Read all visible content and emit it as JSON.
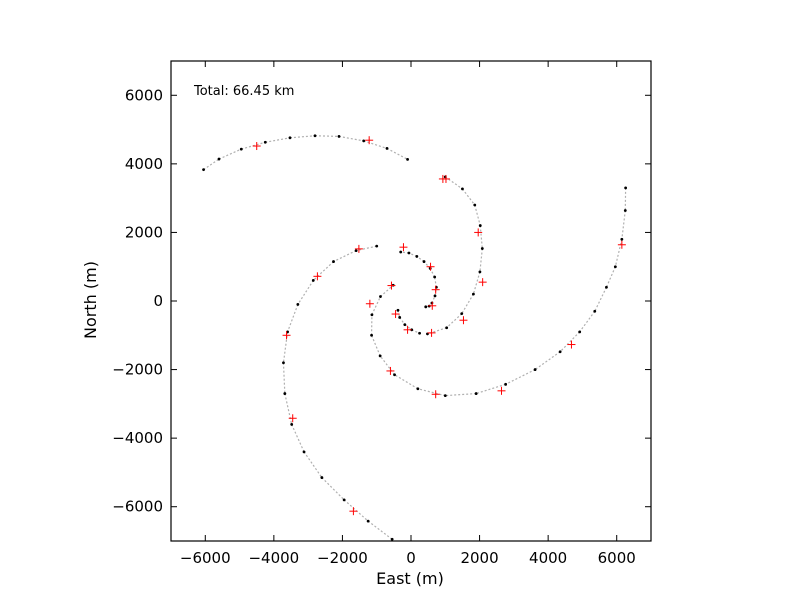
{
  "chart_data": {
    "type": "scatter",
    "xlabel": "East (m)",
    "ylabel": "North (m)",
    "xlim": [
      -7000,
      7000
    ],
    "ylim": [
      -7000,
      7000
    ],
    "xticks": [
      -6000,
      -4000,
      -2000,
      0,
      2000,
      4000,
      6000
    ],
    "yticks": [
      -6000,
      -4000,
      -2000,
      0,
      2000,
      4000,
      6000
    ],
    "annotations": [
      {
        "text": "Total: 66.45 km"
      }
    ],
    "grid": false,
    "colors": {
      "station_marker": "#000000",
      "track_line": "#b0b0b0",
      "cross_marker": "#ff0000"
    },
    "series": [
      {
        "marker": "dot",
        "color": "#000000",
        "points": [
          [
            430,
            -170
          ],
          [
            530,
            -150
          ],
          [
            610,
            -60
          ],
          [
            700,
            150
          ],
          [
            740,
            400
          ],
          [
            690,
            700
          ],
          [
            560,
            950
          ],
          [
            380,
            1150
          ],
          [
            170,
            1300
          ],
          [
            -60,
            1400
          ],
          [
            -300,
            1430
          ],
          [
            1000,
            3620
          ],
          [
            1500,
            3270
          ],
          [
            1860,
            2800
          ],
          [
            2020,
            2200
          ],
          [
            2080,
            1530
          ],
          [
            2010,
            850
          ],
          [
            1820,
            200
          ],
          [
            1480,
            -370
          ],
          [
            1040,
            -780
          ],
          [
            480,
            -960
          ],
          [
            6260,
            3300
          ],
          [
            6250,
            2640
          ],
          [
            6150,
            1800
          ],
          [
            5960,
            1000
          ],
          [
            5700,
            400
          ],
          [
            5360,
            -300
          ],
          [
            4920,
            -900
          ],
          [
            4350,
            -1480
          ],
          [
            3620,
            -2000
          ],
          [
            2760,
            -2430
          ],
          [
            1900,
            -2700
          ],
          [
            1000,
            -2760
          ],
          [
            200,
            -2560
          ],
          [
            -480,
            -2150
          ],
          [
            -900,
            -1600
          ],
          [
            -1150,
            -1000
          ],
          [
            -1140,
            -400
          ],
          [
            -890,
            130
          ],
          [
            -520,
            460
          ],
          [
            -6050,
            3830
          ],
          [
            -5600,
            4140
          ],
          [
            -4950,
            4430
          ],
          [
            -4250,
            4630
          ],
          [
            -3530,
            4760
          ],
          [
            -2800,
            4820
          ],
          [
            -2100,
            4800
          ],
          [
            -1380,
            4670
          ],
          [
            -700,
            4450
          ],
          [
            -100,
            4130
          ],
          [
            -1000,
            1600
          ],
          [
            -1600,
            1470
          ],
          [
            -2260,
            1150
          ],
          [
            -2850,
            600
          ],
          [
            -3300,
            -100
          ],
          [
            -3600,
            -900
          ],
          [
            -3720,
            -1800
          ],
          [
            -3680,
            -2700
          ],
          [
            -3480,
            -3600
          ],
          [
            -3120,
            -4400
          ],
          [
            -2600,
            -5150
          ],
          [
            -1950,
            -5800
          ],
          [
            -1250,
            -6420
          ],
          [
            -550,
            -6950
          ],
          [
            -380,
            -270
          ],
          [
            -330,
            -480
          ],
          [
            -180,
            -690
          ],
          [
            20,
            -840
          ],
          [
            250,
            -940
          ]
        ]
      },
      {
        "marker": "cross",
        "color": "#ff0000",
        "points": [
          [
            620,
            -140
          ],
          [
            720,
            330
          ],
          [
            570,
            1000
          ],
          [
            -220,
            1570
          ],
          [
            1960,
            2000
          ],
          [
            2090,
            550
          ],
          [
            930,
            3560
          ],
          [
            -1220,
            4690
          ],
          [
            -4500,
            4520
          ],
          [
            1530,
            -560
          ],
          [
            600,
            -930
          ],
          [
            -100,
            -840
          ],
          [
            -450,
            -380
          ],
          [
            -1200,
            -80
          ],
          [
            -570,
            450
          ],
          [
            -1520,
            1520
          ],
          [
            -2730,
            720
          ],
          [
            -3630,
            -1000
          ],
          [
            -3450,
            -3420
          ],
          [
            -1680,
            -6130
          ],
          [
            6150,
            1640
          ],
          [
            4680,
            -1270
          ],
          [
            2640,
            -2620
          ],
          [
            720,
            -2720
          ],
          [
            -600,
            -2040
          ],
          [
            1020,
            3560
          ]
        ]
      }
    ]
  }
}
